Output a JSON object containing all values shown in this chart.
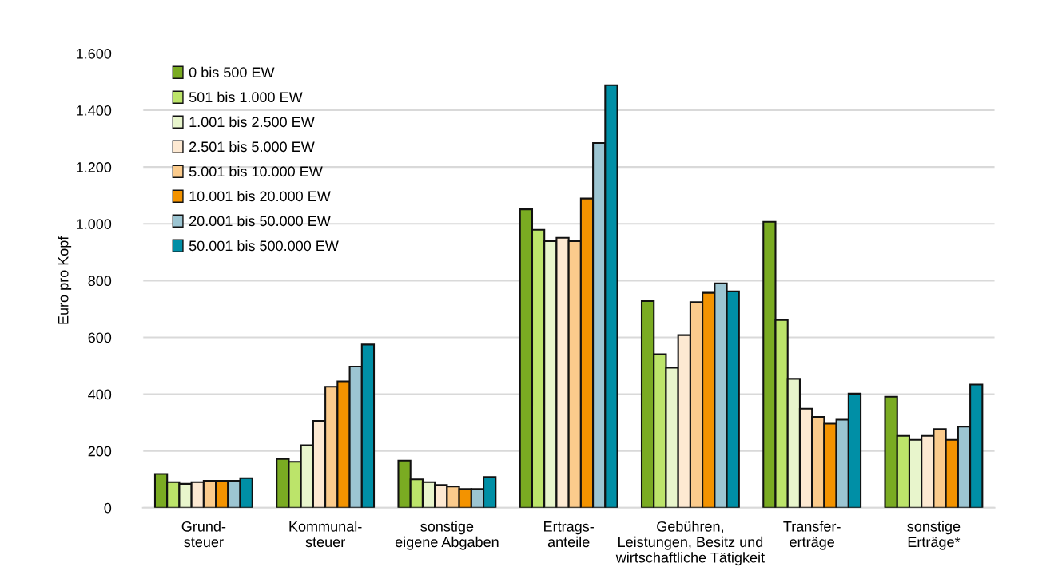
{
  "chart_data": {
    "type": "bar",
    "ylabel": "Euro pro Kopf",
    "categories": [
      "Grund-\nsteuer",
      "Kommunal-\nsteuer",
      "sonstige\neigene Abgaben",
      "Ertrags-\nanteile",
      "Gebühren,\nLeistungen, Besitz und\nwirtschaftliche Tätigkeit",
      "Transfer-\nerträge",
      "sonstige\nErträge*"
    ],
    "series": [
      {
        "name": "0 bis 500 EW",
        "color": "#7aab22",
        "values": [
          119,
          172,
          166,
          1051,
          728,
          1007,
          391
        ]
      },
      {
        "name": "501 bis 1.000 EW",
        "color": "#bce46a",
        "values": [
          90,
          162,
          100,
          979,
          541,
          661,
          253
        ]
      },
      {
        "name": "1.001 bis 2.500 EW",
        "color": "#e8f5cc",
        "values": [
          84,
          220,
          90,
          939,
          493,
          454,
          239
        ]
      },
      {
        "name": "2.501 bis 5.000 EW",
        "color": "#fde9d2",
        "values": [
          90,
          306,
          80,
          951,
          608,
          349,
          253
        ]
      },
      {
        "name": "5.001 bis 10.000 EW",
        "color": "#fbcb8c",
        "values": [
          95,
          426,
          75,
          939,
          724,
          320,
          277
        ]
      },
      {
        "name": "10.001 bis 20.000 EW",
        "color": "#f39300",
        "values": [
          95,
          445,
          66,
          1089,
          757,
          296,
          239
        ]
      },
      {
        "name": "20.001 bis 50.000 EW",
        "color": "#9cc5d2",
        "values": [
          95,
          497,
          66,
          1285,
          790,
          310,
          286
        ]
      },
      {
        "name": "50.001 bis 500.000 EW",
        "color": "#008fa6",
        "values": [
          104,
          575,
          108,
          1488,
          762,
          402,
          434
        ]
      }
    ],
    "ylim": [
      0,
      1600
    ],
    "yticks": [
      0,
      200,
      400,
      600,
      800,
      {
        "value": 1000,
        "label": "1.000"
      },
      {
        "value": 1200,
        "label": "1.200"
      },
      {
        "value": 1400,
        "label": "1.400"
      },
      {
        "value": 1600,
        "label": "1.600"
      }
    ],
    "grid": "y",
    "legend": "top left"
  }
}
